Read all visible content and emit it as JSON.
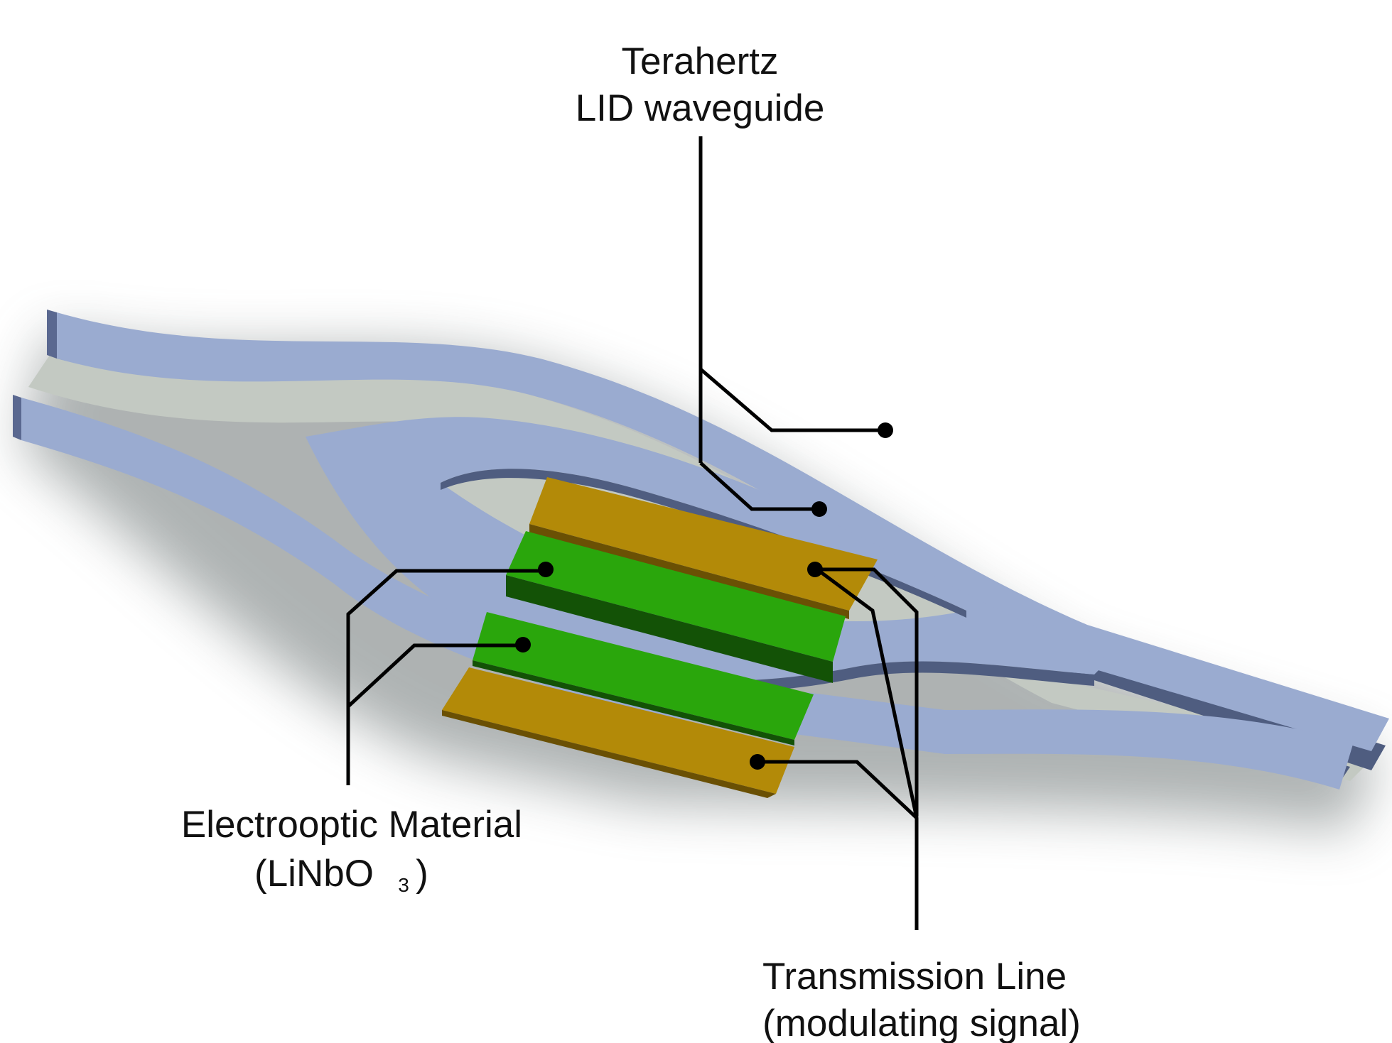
{
  "labels": {
    "waveguide": {
      "line1": "Terahertz",
      "line2": "LID waveguide"
    },
    "electrooptic": {
      "line1": "Electrooptic Material",
      "line2_prefix": "(LiNbO",
      "line2_sub": "3",
      "line2_suffix": ")"
    },
    "transmission": {
      "line1": "Transmission Line",
      "line2": "(modulating signal)"
    }
  },
  "colors": {
    "waveguide_top": "#9aabd0",
    "waveguide_side": "#4f5d80",
    "gap_floor": "#c3c9c2",
    "electrooptic_top": "#2aa60c",
    "electrooptic_side": "#135206",
    "electrode_top": "#b38a08",
    "electrode_side": "#6a5004",
    "leader": "#000000"
  }
}
